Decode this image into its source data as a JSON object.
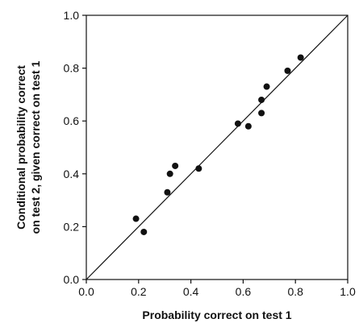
{
  "chart_data": {
    "type": "scatter",
    "title": "",
    "xlabel": "Probability correct on test 1",
    "ylabel_lines": [
      "Conditional probability correct",
      "on test 2, given correct on test 1"
    ],
    "xlim": [
      0.0,
      1.0
    ],
    "ylim": [
      0.0,
      1.0
    ],
    "xticks": [
      "0.0",
      "0.2",
      "0.4",
      "0.6",
      "0.8",
      "1.0"
    ],
    "yticks": [
      "0.0",
      "0.2",
      "0.4",
      "0.6",
      "0.8",
      "1.0"
    ],
    "grid": false,
    "legend": "none",
    "reference_line": {
      "from": [
        0.0,
        0.0
      ],
      "to": [
        1.0,
        1.0
      ]
    },
    "points": [
      {
        "x": 0.19,
        "y": 0.23
      },
      {
        "x": 0.22,
        "y": 0.18
      },
      {
        "x": 0.31,
        "y": 0.33
      },
      {
        "x": 0.32,
        "y": 0.4
      },
      {
        "x": 0.34,
        "y": 0.43
      },
      {
        "x": 0.43,
        "y": 0.42
      },
      {
        "x": 0.58,
        "y": 0.59
      },
      {
        "x": 0.62,
        "y": 0.58
      },
      {
        "x": 0.67,
        "y": 0.63
      },
      {
        "x": 0.67,
        "y": 0.68
      },
      {
        "x": 0.69,
        "y": 0.73
      },
      {
        "x": 0.77,
        "y": 0.79
      },
      {
        "x": 0.82,
        "y": 0.84
      }
    ],
    "colors": {
      "marker": "#111111",
      "axis": "#111111"
    }
  }
}
